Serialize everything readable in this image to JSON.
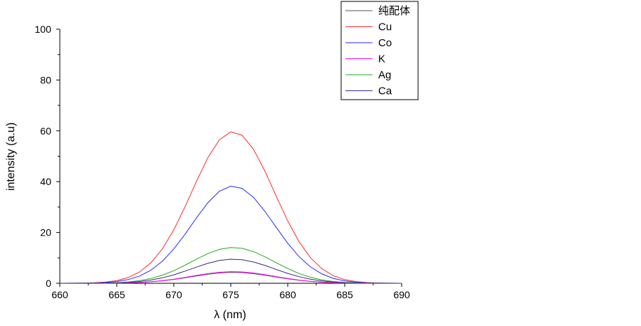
{
  "chart_data": {
    "type": "line",
    "title": "",
    "xlabel": "λ (nm)",
    "ylabel": "intensity (a.u)",
    "xlim": [
      660,
      690
    ],
    "ylim": [
      0,
      100
    ],
    "x_ticks": [
      660,
      665,
      670,
      675,
      680,
      685,
      690
    ],
    "y_ticks": [
      0,
      20,
      40,
      60,
      80,
      100
    ],
    "legend_position": "top-right",
    "center": 675.2,
    "x": [
      660,
      661,
      662,
      663,
      664,
      665,
      666,
      667,
      668,
      669,
      670,
      671,
      672,
      673,
      674,
      675,
      676,
      677,
      678,
      679,
      680,
      681,
      682,
      683,
      684,
      685,
      686,
      687,
      688,
      689,
      690
    ],
    "series": [
      {
        "name": "纯配体",
        "color": "#555555",
        "peak": 4.3
      },
      {
        "name": "Cu",
        "color": "#ff2a2a",
        "peak": 59.7
      },
      {
        "name": "Co",
        "color": "#2a2aff",
        "peak": 38.3
      },
      {
        "name": "K",
        "color": "#ff00ff",
        "peak": 4.6
      },
      {
        "name": "Ag",
        "color": "#22aa22",
        "peak": 14.1
      },
      {
        "name": "Ca",
        "color": "#3a2a8a",
        "peak": 9.5
      }
    ]
  }
}
